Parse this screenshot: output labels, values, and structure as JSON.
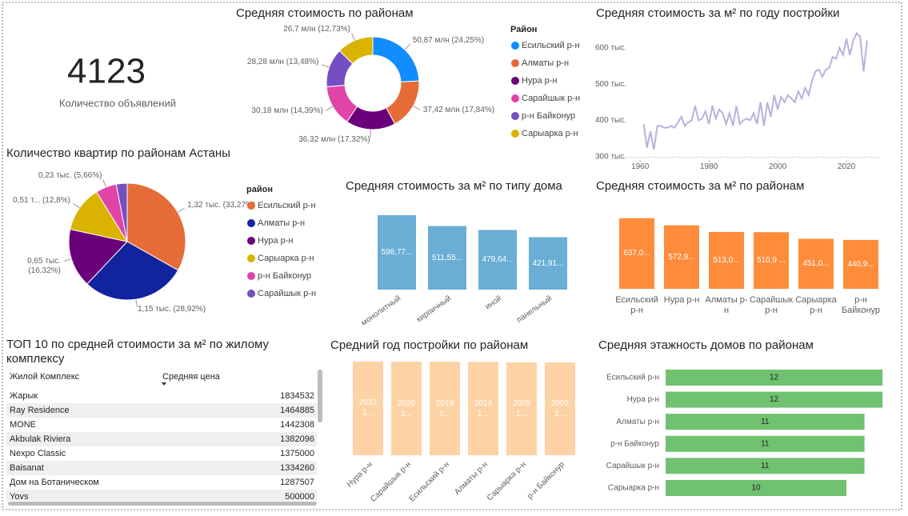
{
  "kpi": {
    "value": 4123,
    "label": "Количество объявлений"
  },
  "chart_data": [
    {
      "type": "donut",
      "title": "Средняя стоимость по районам",
      "legend_title": "Район",
      "categories": [
        "Есильский р-н",
        "Алматы р-н",
        "Нура р-н",
        "Сарайшык р-н",
        "р-н Байконур",
        "Сарыарка р-н"
      ],
      "values": [
        50.87,
        37.42,
        36.32,
        30.18,
        28.28,
        26.7
      ],
      "value_labels": [
        "50,87 млн (24,25%)",
        "37,42 млн (17,84%)",
        "36,32 млн (17,32%)",
        "30,18 млн (14,39%)",
        "28,28 млн (13,48%)",
        "26,7 млн (12,73%)"
      ],
      "colors": [
        "#118DFF",
        "#E66C37",
        "#6B007B",
        "#E044A7",
        "#744EC2",
        "#D9B300"
      ]
    },
    {
      "type": "line",
      "title": "Средняя стоимость за м² по году постройки",
      "color": "#B5B3DE",
      "x": [
        1961,
        1962,
        1963,
        1964,
        1965,
        1966,
        1967,
        1968,
        1969,
        1970,
        1971,
        1972,
        1973,
        1974,
        1975,
        1976,
        1977,
        1978,
        1979,
        1980,
        1981,
        1982,
        1983,
        1984,
        1985,
        1986,
        1987,
        1988,
        1989,
        1990,
        1991,
        1992,
        1993,
        1994,
        1995,
        1996,
        1997,
        1998,
        1999,
        2000,
        2001,
        2002,
        2003,
        2004,
        2005,
        2006,
        2007,
        2008,
        2009,
        2010,
        2011,
        2012,
        2013,
        2014,
        2015,
        2016,
        2017,
        2018,
        2019,
        2020,
        2021,
        2022,
        2023,
        2024,
        2025,
        2026
      ],
      "values": [
        390000,
        325000,
        370000,
        320000,
        385000,
        385000,
        380000,
        380000,
        385000,
        380000,
        395000,
        410000,
        385000,
        395000,
        400000,
        440000,
        400000,
        405000,
        425000,
        390000,
        440000,
        405000,
        430000,
        420000,
        390000,
        420000,
        385000,
        440000,
        390000,
        400000,
        405000,
        400000,
        420000,
        390000,
        450000,
        385000,
        450000,
        410000,
        470000,
        430000,
        465000,
        450000,
        470000,
        460000,
        450000,
        480000,
        460000,
        490000,
        470000,
        510000,
        535000,
        540000,
        520000,
        540000,
        545000,
        575000,
        570000,
        600000,
        580000,
        625000,
        580000,
        620000,
        640000,
        630000,
        535000,
        620000
      ],
      "xlim": [
        1956,
        2030
      ],
      "xticks": [
        1960,
        1980,
        2000,
        2020
      ],
      "ylim": [
        290000,
        650000
      ],
      "yticks": [
        {
          "value": 300000,
          "label": "300 тыс."
        },
        {
          "value": 400000,
          "label": "400 тыс."
        },
        {
          "value": 500000,
          "label": "500 тыс."
        },
        {
          "value": 600000,
          "label": "600 тыс."
        }
      ]
    },
    {
      "type": "pie",
      "title": "Количество квартир по районам Астаны",
      "legend_title": "район",
      "categories": [
        "Есильский р-н",
        "Алматы р-н",
        "Нура р-н",
        "Сарыарка р-н",
        "р-н Байконур",
        "Сарайшык р-н"
      ],
      "values": [
        1.32,
        1.15,
        0.65,
        0.51,
        0.23,
        0.12
      ],
      "value_labels": [
        "1,32 тыс. (33,27%)",
        "1,15 тыс. (28,92%)",
        "0,65 тыс. (16,32%)",
        "0,51 т... (12,8%)",
        "0,23 тыс. (5,66%)",
        null
      ],
      "colors": [
        "#E66C37",
        "#12239E",
        "#6B007B",
        "#D9B300",
        "#E044A7",
        "#744EC2"
      ]
    },
    {
      "type": "bar",
      "title": "Средняя стоимость за м² по типу дома",
      "color": "#6AAED6",
      "categories": [
        "монолитный",
        "кирпичный",
        "иной",
        "панельный"
      ],
      "values": [
        598.77,
        511.55,
        479.64,
        421.91
      ],
      "value_labels": [
        "598,77...",
        "511,55...",
        "479,64...",
        "421,91..."
      ],
      "ylim": [
        0,
        640
      ]
    },
    {
      "type": "bar",
      "title": "Средняя стоимость за м² по районам",
      "color": "#FF8C3A",
      "categories": [
        "Есильский р-н",
        "Нура р-н",
        "Алматы р-н",
        "Сарайшык р-н",
        "Сарыарка р-н",
        "р-н Байконур"
      ],
      "values": [
        637.0,
        572.9,
        513.0,
        510.9,
        451.0,
        440.9
      ],
      "value_labels": [
        "637,0...",
        "572,9...",
        "513,0...",
        "510,9 ...",
        "451,0...",
        "440,9..."
      ],
      "ylim": [
        0,
        700
      ]
    },
    {
      "type": "bar",
      "title": "Средний год постройки по районам",
      "color": "#FDD3A5",
      "categories": [
        "Нура р-н",
        "Сарайшык р-н",
        "Есильский р-н",
        "Алматы р-н",
        "Сарыарка р-н",
        "р-н Байконур"
      ],
      "values": [
        2022.1,
        2020.1,
        2019.1,
        2014.1,
        2005.1,
        2002.1
      ],
      "value_labels": [
        "2022 1...",
        "2020 1...",
        "2019 1...",
        "2014 1...",
        "2005 1...",
        "2002 1..."
      ],
      "ylim": [
        0,
        2030
      ]
    },
    {
      "type": "barh",
      "title": "Средняя этажность домов по районам",
      "color": "#70C170",
      "categories": [
        "Есильский р-н",
        "Нура р-н",
        "Алматы р-н",
        "р-н Байконур",
        "Сарайшык р-н",
        "Сарыарка р-н"
      ],
      "values": [
        12,
        12,
        11,
        11,
        11,
        10
      ],
      "xlim": [
        0,
        12.3
      ]
    }
  ],
  "table": {
    "title": "ТОП 10 по средней стоимости за м² по жилому комплексу",
    "columns": [
      "Жилой Комплекс",
      "Средняя цена"
    ],
    "rows": [
      [
        "Жарык",
        1834532
      ],
      [
        "Ray Residence",
        1464885
      ],
      [
        "MONE",
        1442308
      ],
      [
        "Akbulak Riviera",
        1382096
      ],
      [
        "Nexpo Classic",
        1375000
      ],
      [
        "Baisanat",
        1334260
      ],
      [
        "Дом на Ботаническом",
        1287507
      ],
      [
        "Yovs",
        500000
      ]
    ]
  }
}
